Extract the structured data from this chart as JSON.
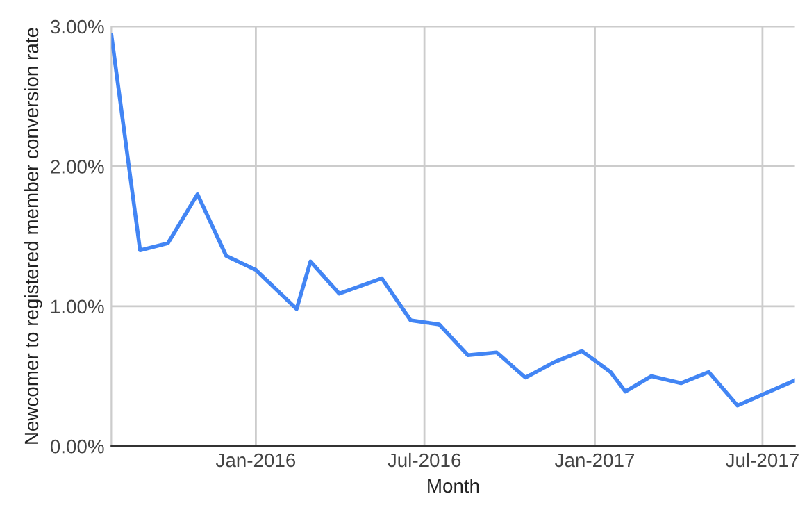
{
  "chart_data": {
    "type": "line",
    "xlabel": "Month",
    "ylabel": "Newcomer to registered member conversion rate",
    "x": [
      "2015-07-29",
      "2015-08-29",
      "2015-09-28",
      "2015-10-30",
      "2015-11-30",
      "2016-01-01",
      "2016-02-14",
      "2016-02-29",
      "2016-03-31",
      "2016-05-16",
      "2016-06-16",
      "2016-07-17",
      "2016-08-17",
      "2016-09-17",
      "2016-10-18",
      "2016-11-18",
      "2016-12-18",
      "2017-01-18",
      "2017-02-03",
      "2017-03-03",
      "2017-04-04",
      "2017-05-04",
      "2017-06-04",
      "2017-08-05"
    ],
    "series": [
      {
        "color": "#4285f4",
        "values": [
          2.94,
          1.4,
          1.45,
          1.8,
          1.36,
          1.26,
          0.98,
          1.32,
          1.09,
          1.2,
          0.9,
          0.87,
          0.65,
          0.67,
          0.49,
          0.6,
          0.68,
          0.53,
          0.39,
          0.5,
          0.45,
          0.53,
          0.29,
          0.47
        ]
      }
    ],
    "xlim": [
      "2015-07-29",
      "2017-08-05"
    ],
    "xticks": [
      {
        "value": "2016-01-01",
        "label": "Jan-2016"
      },
      {
        "value": "2016-07-01",
        "label": "Jul-2016"
      },
      {
        "value": "2017-01-01",
        "label": "Jan-2017"
      },
      {
        "value": "2017-07-01",
        "label": "Jul-2017"
      }
    ],
    "ylim": [
      0,
      3
    ],
    "yticks": [
      {
        "value": 0,
        "label": "0.00%"
      },
      {
        "value": 1,
        "label": "1.00%"
      },
      {
        "value": 2,
        "label": "2.00%"
      },
      {
        "value": 3,
        "label": "3.00%"
      }
    ],
    "grid": true,
    "line_style": "solid",
    "marker": "none"
  }
}
